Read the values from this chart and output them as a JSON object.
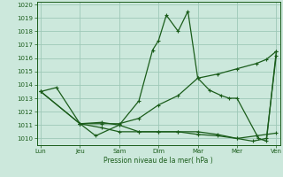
{
  "title": "Pression niveau de la mer( hPa )",
  "background_color": "#cce8dc",
  "grid_color": "#9ec8b8",
  "line_color": "#1a5c1a",
  "ylim": [
    1009.5,
    1020.2
  ],
  "yticks": [
    1010,
    1011,
    1012,
    1013,
    1014,
    1015,
    1016,
    1017,
    1018,
    1019,
    1020
  ],
  "x_labels": [
    "Lun",
    "Jeu",
    "Sam",
    "Dim",
    "Mar",
    "Mer",
    "Ven"
  ],
  "x_positions": [
    0,
    1,
    2,
    3,
    4,
    5,
    6
  ],
  "series": [
    {
      "x": [
        0.0,
        0.4,
        1.0,
        1.55,
        2.0,
        2.5,
        2.85,
        3.0,
        3.2,
        3.5,
        3.75,
        4.0,
        4.3,
        4.6,
        4.8,
        5.0,
        5.55,
        5.75,
        6.0
      ],
      "y": [
        1013.5,
        1013.8,
        1011.1,
        1011.2,
        1011.0,
        1012.8,
        1016.6,
        1017.3,
        1019.2,
        1018.0,
        1019.5,
        1014.5,
        1013.6,
        1013.2,
        1013.0,
        1013.0,
        1010.0,
        1009.8,
        1016.5
      ]
    },
    {
      "x": [
        0.0,
        1.0,
        1.55,
        2.0,
        2.5,
        3.0,
        3.5,
        4.0,
        4.5,
        5.0,
        5.5,
        5.75,
        6.0
      ],
      "y": [
        1013.5,
        1011.1,
        1011.1,
        1011.1,
        1011.5,
        1012.5,
        1013.2,
        1014.5,
        1014.8,
        1015.2,
        1015.6,
        1015.9,
        1016.5
      ]
    },
    {
      "x": [
        0.0,
        1.0,
        1.55,
        2.0,
        2.5,
        3.0,
        3.5,
        4.0,
        4.5,
        5.0,
        5.5,
        6.0
      ],
      "y": [
        1013.5,
        1011.1,
        1010.8,
        1010.5,
        1010.5,
        1010.5,
        1010.5,
        1010.3,
        1010.2,
        1010.0,
        1010.2,
        1010.4
      ]
    },
    {
      "x": [
        1.0,
        1.4,
        2.0,
        2.5,
        3.0,
        3.5,
        4.0,
        4.5,
        5.0,
        5.4,
        5.75,
        6.0
      ],
      "y": [
        1011.1,
        1010.2,
        1011.0,
        1010.5,
        1010.5,
        1010.5,
        1010.5,
        1010.3,
        1010.0,
        1009.8,
        1010.0,
        1016.2
      ]
    }
  ]
}
